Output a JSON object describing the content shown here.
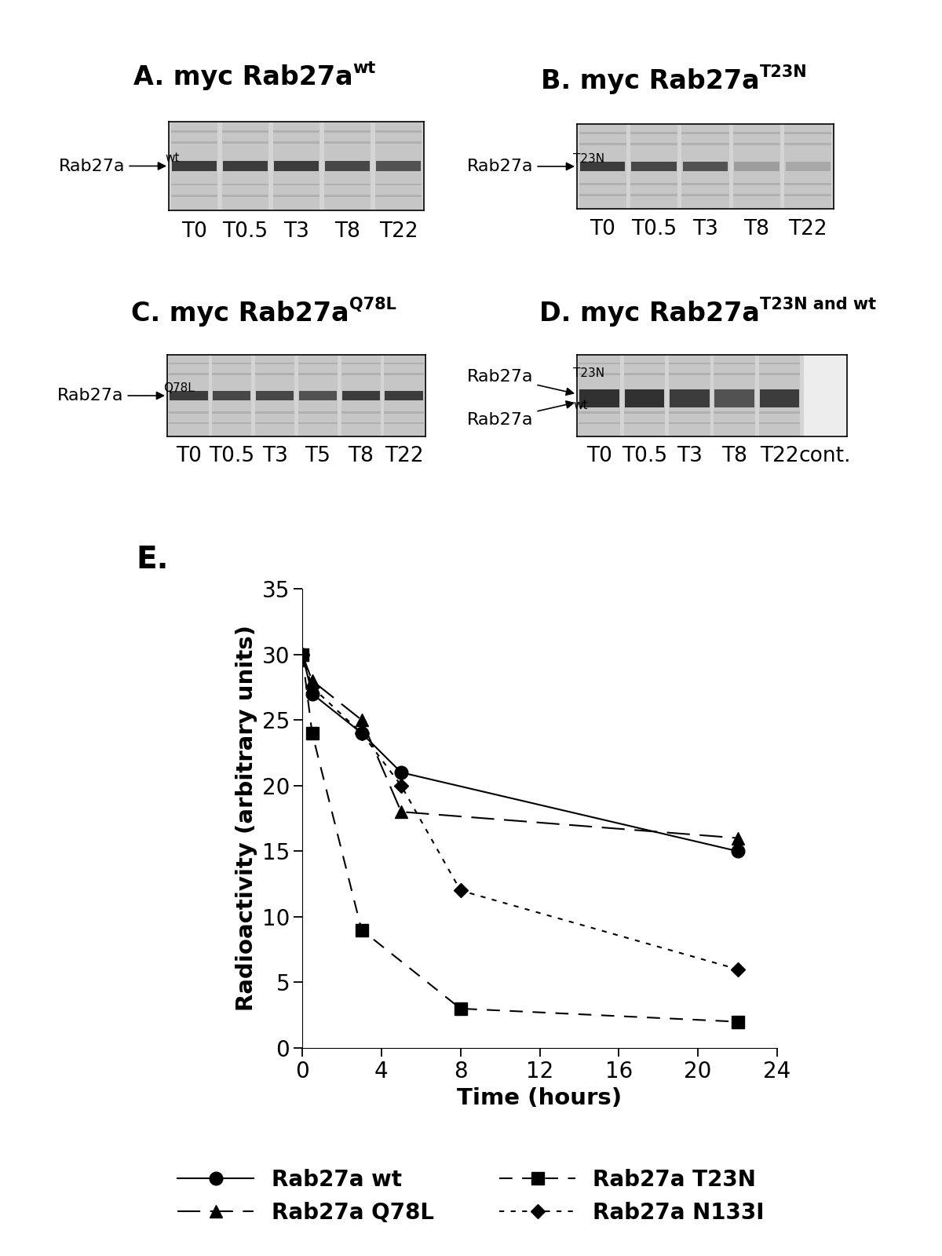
{
  "blots": [
    {
      "title": "A. myc Rab27a",
      "title_sup": "wt",
      "bands": [
        {
          "text": "Rab27a",
          "sup": "wt"
        }
      ],
      "lanes": [
        "T0",
        "T0.5",
        "T3",
        "T8",
        "T22"
      ],
      "band_intensity": [
        0.9,
        0.9,
        0.9,
        0.85,
        0.8
      ]
    },
    {
      "title": "B. myc Rab27a",
      "title_sup": "T23N",
      "bands": [
        {
          "text": "Rab27a",
          "sup": "T23N"
        }
      ],
      "lanes": [
        "T0",
        "T0.5",
        "T3",
        "T8",
        "T22"
      ],
      "band_intensity": [
        0.9,
        0.85,
        0.8,
        0.45,
        0.4
      ]
    },
    {
      "title": "C. myc Rab27a",
      "title_sup": "Q78L",
      "bands": [
        {
          "text": "Rab27a",
          "sup": "Q78L"
        }
      ],
      "lanes": [
        "T0",
        "T0.5",
        "T3",
        "T5",
        "T8",
        "T22"
      ],
      "band_intensity": [
        0.9,
        0.85,
        0.85,
        0.8,
        0.9,
        0.9
      ]
    },
    {
      "title": "D. myc Rab27a",
      "title_sup": "T23N and wt",
      "bands": [
        {
          "text": "Rab27a",
          "sup": "T23N"
        },
        {
          "text": "Rab27a",
          "sup": "wt"
        }
      ],
      "lanes": [
        "T0",
        "T0.5",
        "T3",
        "T8",
        "T22",
        "cont."
      ],
      "band_intensity": [
        0.95,
        0.95,
        0.9,
        0.8,
        0.9,
        0.0
      ]
    }
  ],
  "chart_data": {
    "type": "line",
    "title": "E.",
    "x_label": "Time (hours)",
    "y_label": "Radioactivity (arbitrary units)",
    "xlim": [
      0,
      24
    ],
    "xticks": [
      0,
      4,
      8,
      12,
      16,
      20,
      24
    ],
    "ylim": [
      0,
      35
    ],
    "yticks": [
      0,
      5,
      10,
      15,
      20,
      25,
      30,
      35
    ],
    "grid": false,
    "legend": "lower center",
    "series": [
      {
        "name": "Rab27a wt",
        "color": "#000000",
        "marker": "circle",
        "line_style": "solid",
        "x": [
          0,
          0.5,
          3,
          5,
          22
        ],
        "values": [
          30,
          27,
          24,
          21,
          15
        ]
      },
      {
        "name": "Rab27a Q78L",
        "color": "#000000",
        "marker": "triangle",
        "line_style": "longdash",
        "x": [
          0,
          0.5,
          3,
          5,
          22
        ],
        "values": [
          30,
          28,
          25,
          18,
          16
        ]
      },
      {
        "name": "Rab27a T23N",
        "color": "#000000",
        "marker": "square",
        "line_style": "dashed",
        "x": [
          0,
          0.5,
          3,
          8,
          22
        ],
        "values": [
          30,
          24,
          9,
          3,
          2
        ]
      },
      {
        "name": "Rab27a N133I",
        "color": "#000000",
        "marker": "diamond",
        "line_style": "dotted",
        "x": [
          0,
          0.5,
          3,
          5,
          8,
          22
        ],
        "values": [
          30,
          27.5,
          24,
          20,
          12,
          6
        ]
      }
    ]
  }
}
